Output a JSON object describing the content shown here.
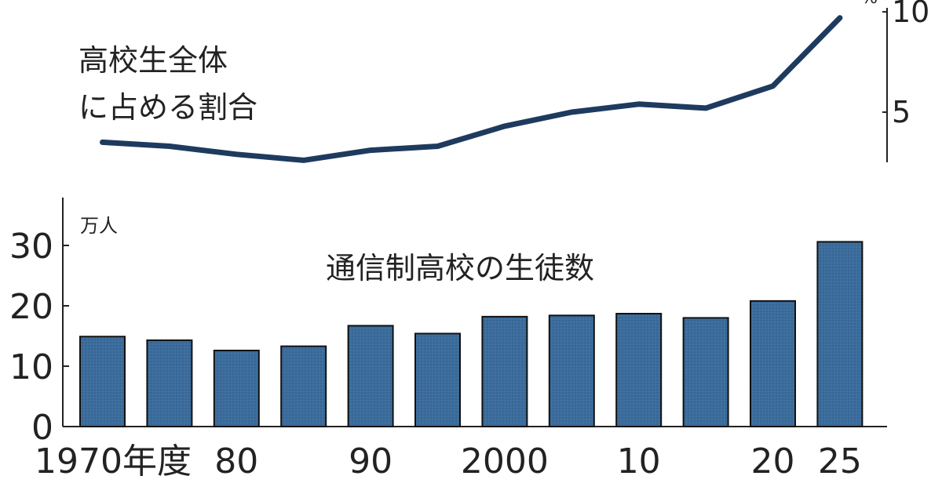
{
  "chart_data": [
    {
      "type": "line",
      "title": "高校生全体\nに占める割合",
      "unit": "%",
      "x": [
        1970,
        1975,
        1980,
        1985,
        1990,
        1995,
        2000,
        2005,
        2010,
        2015,
        2020,
        2025
      ],
      "values": [
        3.5,
        3.3,
        2.9,
        2.6,
        3.1,
        3.3,
        4.3,
        5.0,
        5.4,
        5.2,
        6.3,
        9.7
      ],
      "ylim": [
        2.5,
        10.2
      ],
      "yticks": [
        5,
        10
      ],
      "ytick_labels": [
        "5",
        "10"
      ],
      "line_color": "#1e3a5f",
      "grid": false
    },
    {
      "type": "bar",
      "title": "通信制高校の生徒数",
      "unit": "万人",
      "categories": [
        1970,
        1975,
        1980,
        1985,
        1990,
        1995,
        2000,
        2005,
        2010,
        2015,
        2020,
        2025
      ],
      "category_labels": [
        "1970年度",
        "",
        "80",
        "",
        "90",
        "",
        "2000",
        "",
        "10",
        "",
        "20",
        "25"
      ],
      "values": [
        14.9,
        14.3,
        12.6,
        13.3,
        16.7,
        15.4,
        18.2,
        18.4,
        18.7,
        18.0,
        20.8,
        30.6
      ],
      "ylim": [
        0,
        38
      ],
      "yticks": [
        0,
        10,
        20,
        30
      ],
      "ytick_labels": [
        "0",
        "10",
        "20",
        "30"
      ],
      "bar_color": "#3a6a9a",
      "grid": false
    }
  ]
}
